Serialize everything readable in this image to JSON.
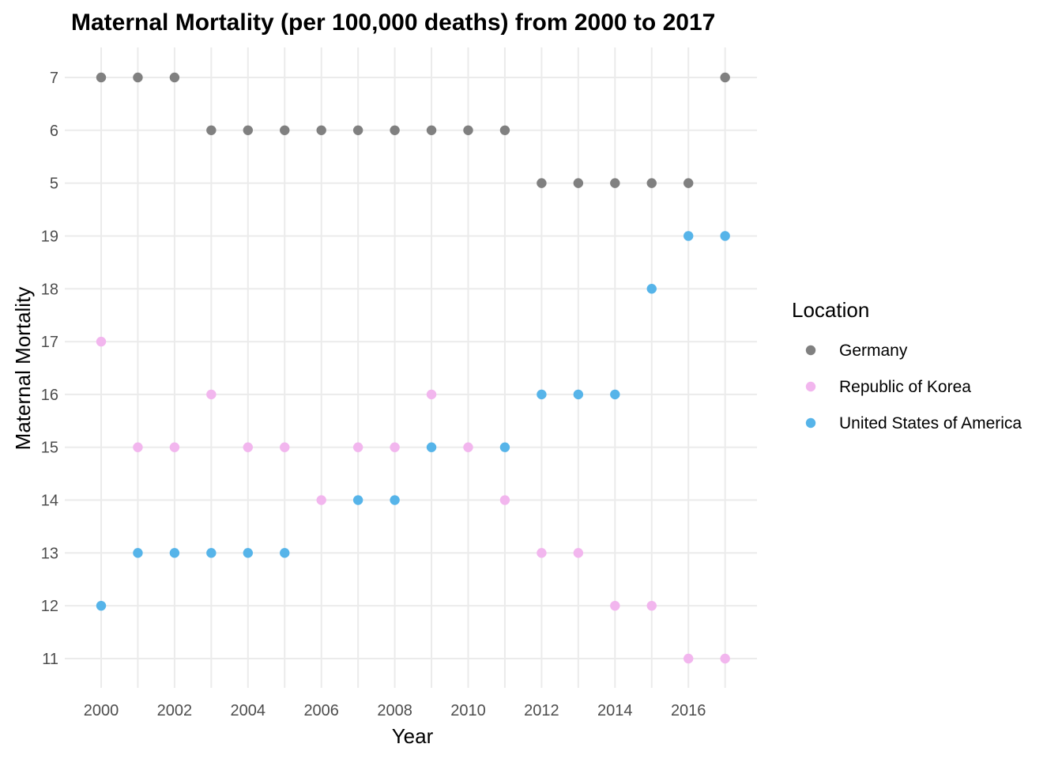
{
  "chart_data": {
    "type": "scatter",
    "title": "Maternal Mortality (per 100,000 deaths) from 2000 to 2017",
    "xlabel": "Year",
    "ylabel": "Maternal Mortality",
    "x_ticks": [
      "2000",
      "2002",
      "2004",
      "2006",
      "2008",
      "2010",
      "2012",
      "2014",
      "2016"
    ],
    "x_tick_values": [
      2000,
      2002,
      2004,
      2006,
      2008,
      2010,
      2012,
      2014,
      2016
    ],
    "xlim": [
      2000,
      2017
    ],
    "y_categories": [
      "11",
      "12",
      "13",
      "14",
      "15",
      "16",
      "17",
      "18",
      "19",
      "5",
      "6",
      "7"
    ],
    "y_scale": "discrete",
    "grid": true,
    "legend": {
      "title": "Location",
      "position": "right"
    },
    "series": [
      {
        "name": "Germany",
        "color": "#808080",
        "x": [
          2000,
          2001,
          2002,
          2003,
          2004,
          2005,
          2006,
          2007,
          2008,
          2009,
          2010,
          2011,
          2012,
          2013,
          2014,
          2015,
          2016,
          2017
        ],
        "y": [
          "7",
          "7",
          "7",
          "6",
          "6",
          "6",
          "6",
          "6",
          "6",
          "6",
          "6",
          "6",
          "5",
          "5",
          "5",
          "5",
          "5",
          "7"
        ]
      },
      {
        "name": "Republic of Korea",
        "color": "#f2b6ee",
        "x": [
          2000,
          2001,
          2002,
          2003,
          2004,
          2005,
          2006,
          2007,
          2008,
          2009,
          2010,
          2011,
          2012,
          2013,
          2014,
          2015,
          2016,
          2017
        ],
        "y": [
          "17",
          "15",
          "15",
          "16",
          "15",
          "15",
          "14",
          "15",
          "15",
          "16",
          "15",
          "14",
          "13",
          "13",
          "12",
          "12",
          "11",
          "11"
        ]
      },
      {
        "name": "United States of America",
        "color": "#56b4e9",
        "x": [
          2000,
          2001,
          2002,
          2003,
          2004,
          2005,
          2007,
          2008,
          2009,
          2011,
          2012,
          2013,
          2014,
          2015,
          2016,
          2017
        ],
        "y": [
          "12",
          "13",
          "13",
          "13",
          "13",
          "13",
          "14",
          "14",
          "15",
          "15",
          "16",
          "16",
          "16",
          "18",
          "19",
          "19"
        ]
      }
    ]
  }
}
